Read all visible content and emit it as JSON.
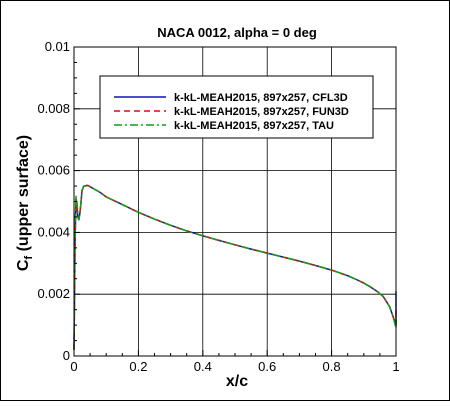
{
  "chart_data": {
    "type": "line",
    "title": "NACA 0012, alpha = 0 deg",
    "xlabel": "x/c",
    "ylabel_main": "C",
    "ylabel_sub": "f",
    "ylabel_rest": " (upper surface)",
    "xlim": [
      0,
      1
    ],
    "ylim": [
      0,
      0.01
    ],
    "xticks": [
      0,
      0.2,
      0.4,
      0.6,
      0.8,
      1
    ],
    "xtick_labels": [
      "0",
      "0.2",
      "0.4",
      "0.6",
      "0.8",
      "1"
    ],
    "yticks": [
      0,
      0.002,
      0.004,
      0.006,
      0.008,
      0.01
    ],
    "ytick_labels": [
      "0",
      "0.002",
      "0.004",
      "0.006",
      "0.008",
      "0.01"
    ],
    "grid": true,
    "legend_position": "top-center",
    "series": [
      {
        "name": "k-kL-MEAH2015, 897x257, CFL3D",
        "color": "#1010c0",
        "dash": "solid",
        "x": [
          0.0,
          0.003,
          0.006,
          0.009,
          0.012,
          0.015,
          0.018,
          0.021,
          0.025,
          0.03,
          0.035,
          0.04,
          0.045,
          0.05,
          0.06,
          0.08,
          0.1,
          0.15,
          0.2,
          0.25,
          0.3,
          0.35,
          0.4,
          0.45,
          0.5,
          0.55,
          0.6,
          0.65,
          0.7,
          0.75,
          0.8,
          0.85,
          0.88,
          0.9,
          0.92,
          0.94,
          0.96,
          0.98,
          0.99,
          1.0,
          1.0
        ],
        "y": [
          0.0002,
          0.0035,
          0.0051,
          0.0049,
          0.0045,
          0.0044,
          0.0046,
          0.0049,
          0.00535,
          0.0055,
          0.0055,
          0.00552,
          0.00551,
          0.00548,
          0.00542,
          0.0053,
          0.00515,
          0.0049,
          0.00465,
          0.00443,
          0.00423,
          0.00405,
          0.00389,
          0.00374,
          0.0036,
          0.00346,
          0.00333,
          0.0032,
          0.00307,
          0.00293,
          0.00278,
          0.0026,
          0.00246,
          0.00236,
          0.00224,
          0.0021,
          0.00193,
          0.0016,
          0.0013,
          0.001,
          0.0021
        ]
      },
      {
        "name": "k-kL-MEAH2015, 897x257, FUN3D",
        "color": "#d01010",
        "dash": "dashed",
        "x": [
          0.0,
          0.003,
          0.006,
          0.009,
          0.012,
          0.015,
          0.018,
          0.021,
          0.025,
          0.03,
          0.035,
          0.04,
          0.045,
          0.05,
          0.06,
          0.08,
          0.1,
          0.15,
          0.2,
          0.25,
          0.3,
          0.35,
          0.4,
          0.45,
          0.5,
          0.55,
          0.6,
          0.65,
          0.7,
          0.75,
          0.8,
          0.85,
          0.88,
          0.9,
          0.92,
          0.94,
          0.96,
          0.98,
          0.99,
          1.0,
          1.0
        ],
        "y": [
          0.0002,
          0.0035,
          0.0051,
          0.0049,
          0.0045,
          0.0044,
          0.0046,
          0.0049,
          0.00535,
          0.0055,
          0.0055,
          0.00552,
          0.00551,
          0.00548,
          0.00542,
          0.0053,
          0.00515,
          0.0049,
          0.00465,
          0.00443,
          0.00423,
          0.00405,
          0.00389,
          0.00374,
          0.0036,
          0.00346,
          0.00333,
          0.0032,
          0.00307,
          0.00293,
          0.00278,
          0.0026,
          0.00246,
          0.00236,
          0.00224,
          0.0021,
          0.00193,
          0.0016,
          0.0013,
          0.001,
          0.0015
        ]
      },
      {
        "name": "k-kL-MEAH2015, 897x257, TAU",
        "color": "#10a010",
        "dash": "dashdot",
        "x": [
          0.0,
          0.003,
          0.006,
          0.009,
          0.012,
          0.015,
          0.018,
          0.021,
          0.025,
          0.03,
          0.035,
          0.04,
          0.045,
          0.05,
          0.06,
          0.08,
          0.1,
          0.15,
          0.2,
          0.25,
          0.3,
          0.35,
          0.4,
          0.45,
          0.5,
          0.55,
          0.6,
          0.65,
          0.7,
          0.75,
          0.8,
          0.85,
          0.88,
          0.9,
          0.92,
          0.94,
          0.96,
          0.98,
          0.99,
          1.0,
          1.0
        ],
        "y": [
          0.0002,
          0.0036,
          0.0052,
          0.005,
          0.0046,
          0.0044,
          0.0046,
          0.0049,
          0.00535,
          0.0055,
          0.0055,
          0.00552,
          0.00551,
          0.00548,
          0.00542,
          0.0053,
          0.00515,
          0.0049,
          0.00465,
          0.00443,
          0.00423,
          0.00405,
          0.00389,
          0.00374,
          0.0036,
          0.00346,
          0.00333,
          0.0032,
          0.00307,
          0.00293,
          0.00278,
          0.0026,
          0.00246,
          0.00236,
          0.00224,
          0.0021,
          0.00193,
          0.0016,
          0.0013,
          0.0009,
          0.0012
        ]
      }
    ]
  }
}
